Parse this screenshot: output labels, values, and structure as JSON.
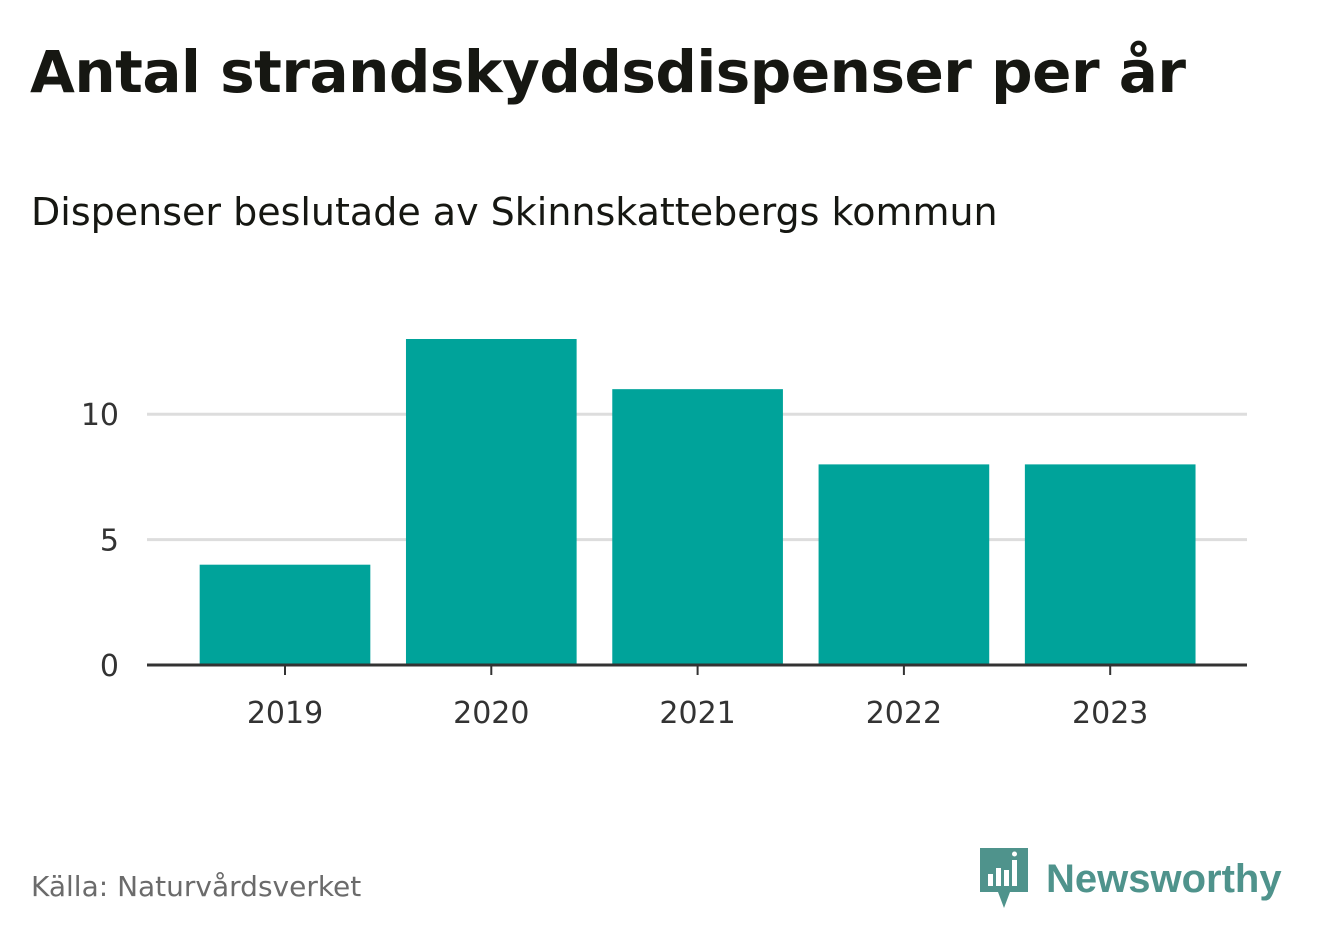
{
  "title": "Antal strandskyddsdispenser per år",
  "subtitle": "Dispenser beslutade av Skinnskattebergs kommun",
  "source": "Källa: Naturvårdsverket",
  "brand": {
    "name": "Newsworthy",
    "icon": "newsworthy-logo-icon",
    "color": "#4f938c"
  },
  "colors": {
    "bar": "#00a39a",
    "grid": "#dddddd",
    "axis": "#333333"
  },
  "chart_data": {
    "type": "bar",
    "title": "Antal strandskyddsdispenser per år",
    "subtitle": "Dispenser beslutade av Skinnskattebergs kommun",
    "categories": [
      "2019",
      "2020",
      "2021",
      "2022",
      "2023"
    ],
    "values": [
      4,
      13,
      11,
      8,
      8
    ],
    "xlabel": "",
    "ylabel": "",
    "ylim": [
      0,
      13
    ],
    "yticks": [
      0,
      5,
      10
    ],
    "ytick_labels": [
      "0",
      "5",
      "10"
    ],
    "grid": true,
    "legend": "none"
  }
}
